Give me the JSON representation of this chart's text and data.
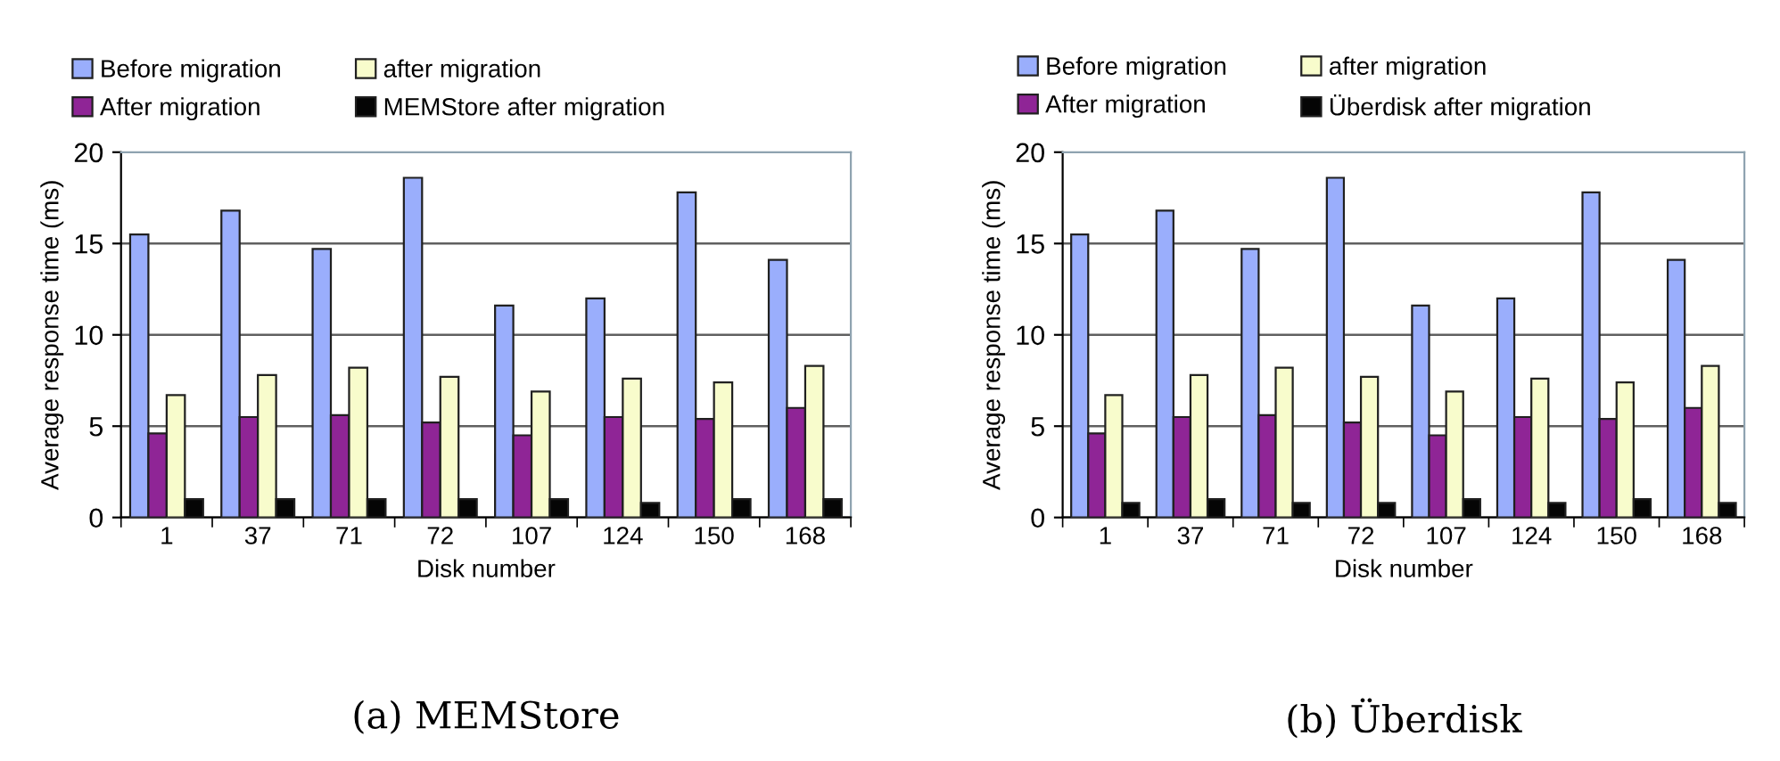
{
  "chart_data": [
    {
      "type": "bar",
      "xlabel": "Disk number",
      "ylabel": "Average response time (ms)",
      "categories": [
        "1",
        "37",
        "71",
        "72",
        "107",
        "124",
        "150",
        "168"
      ],
      "ylim": [
        0,
        20
      ],
      "yticks": [
        0,
        5,
        10,
        15,
        20
      ],
      "grid": "y",
      "legend": "top",
      "annotations": [
        "(a) MEMStore"
      ],
      "series": [
        {
          "name": "Before migration",
          "color": "#9aaefc",
          "values": [
            15.5,
            16.8,
            14.7,
            18.6,
            11.6,
            12.0,
            17.8,
            14.1
          ]
        },
        {
          "name": "After migration",
          "color": "#8f2596",
          "values": [
            4.6,
            5.5,
            5.6,
            5.2,
            4.5,
            5.5,
            5.4,
            6.0
          ]
        },
        {
          "name": "after migration",
          "color": "#f8fccc",
          "values": [
            6.7,
            7.8,
            8.2,
            7.7,
            6.9,
            7.6,
            7.4,
            8.3
          ]
        },
        {
          "name": "MEMStore after migration",
          "color": "#050505",
          "values": [
            1.0,
            1.0,
            1.0,
            1.0,
            1.0,
            0.8,
            1.0,
            1.0
          ]
        }
      ]
    },
    {
      "type": "bar",
      "xlabel": "Disk number",
      "ylabel": "Average response time (ms)",
      "categories": [
        "1",
        "37",
        "71",
        "72",
        "107",
        "124",
        "150",
        "168"
      ],
      "ylim": [
        0,
        20
      ],
      "yticks": [
        0,
        5,
        10,
        15,
        20
      ],
      "grid": "y",
      "legend": "top",
      "annotations": [
        "(b) Überdisk"
      ],
      "series": [
        {
          "name": "Before migration",
          "color": "#9aaefc",
          "values": [
            15.5,
            16.8,
            14.7,
            18.6,
            11.6,
            12.0,
            17.8,
            14.1
          ]
        },
        {
          "name": "After migration",
          "color": "#8f2596",
          "values": [
            4.6,
            5.5,
            5.6,
            5.2,
            4.5,
            5.5,
            5.4,
            6.0
          ]
        },
        {
          "name": "after migration",
          "color": "#f8fccc",
          "values": [
            6.7,
            7.8,
            8.2,
            7.7,
            6.9,
            7.6,
            7.4,
            8.3
          ]
        },
        {
          "name": "Überdisk after migration",
          "color": "#050505",
          "values": [
            0.8,
            1.0,
            0.8,
            0.8,
            1.0,
            0.8,
            1.0,
            0.8
          ]
        }
      ]
    }
  ]
}
